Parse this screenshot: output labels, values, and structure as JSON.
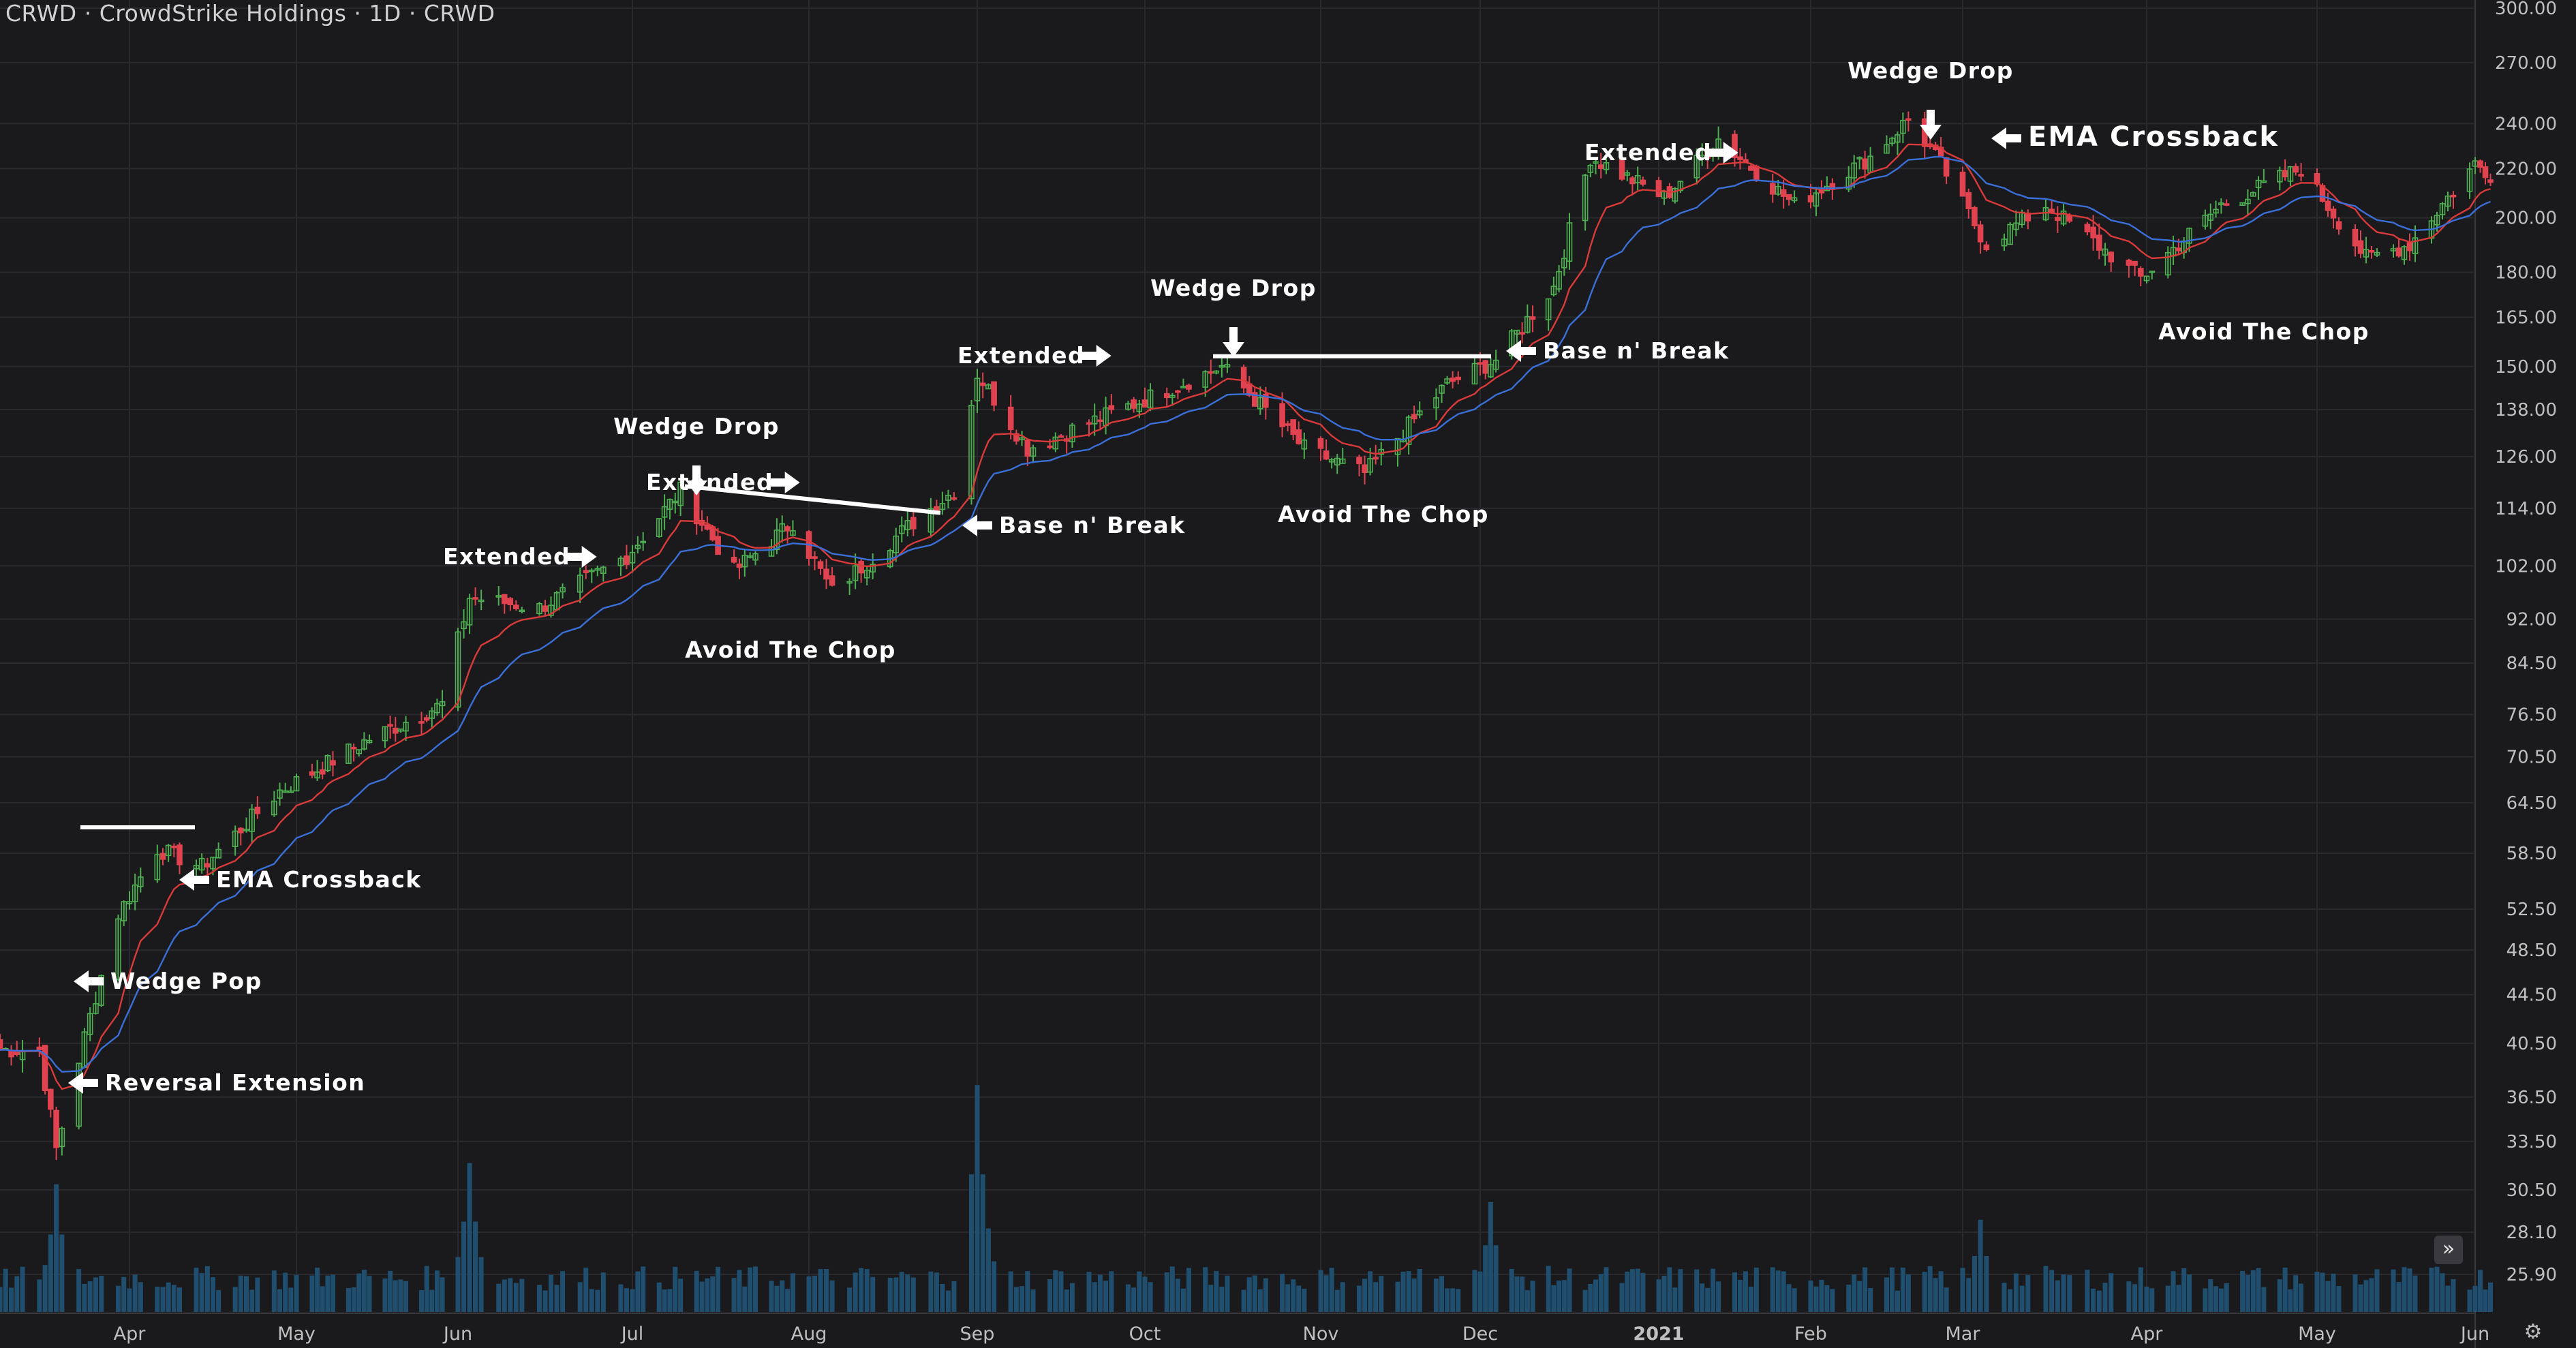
{
  "header": {
    "symbol": "CRWD",
    "company": "CrowdStrike Holdings",
    "interval": "1D",
    "exchange_symbol": "CRWD",
    "sep": "·"
  },
  "controls": {
    "collapse_icon": "double-chevron-right-icon",
    "settings_icon": "gear-icon"
  },
  "colors": {
    "background": "#1a1a1c",
    "grid": "#2a2a2e",
    "up": "#4caf50",
    "down": "#e0424f",
    "ema_fast": "#d93a3a",
    "ema_slow": "#3b6fd8",
    "volume": "#1f4e6e",
    "text": "#bfbfbf"
  },
  "chart_data": {
    "type": "candlestick",
    "scale": "log",
    "grid": true,
    "y_ticks": [
      "300.00",
      "270.00",
      "240.00",
      "220.00",
      "200.00",
      "180.00",
      "165.00",
      "150.00",
      "138.00",
      "126.00",
      "114.00",
      "102.00",
      "92.00",
      "84.50",
      "76.50",
      "70.50",
      "64.50",
      "58.50",
      "52.50",
      "48.50",
      "44.50",
      "40.50",
      "36.50",
      "33.50",
      "30.50",
      "28.10",
      "25.90"
    ],
    "x_ticks": [
      "Apr",
      "May",
      "Jun",
      "Jul",
      "Aug",
      "Sep",
      "Oct",
      "Nov",
      "Dec",
      "2021",
      "Feb",
      "Mar",
      "Apr",
      "May",
      "Jun"
    ],
    "price_anchors": [
      {
        "date": "2020-03-16",
        "close": 40
      },
      {
        "date": "2020-03-19",
        "close": 33
      },
      {
        "date": "2020-03-24",
        "close": 41
      },
      {
        "date": "2020-03-30",
        "close": 52
      },
      {
        "date": "2020-04-06",
        "close": 59
      },
      {
        "date": "2020-04-14",
        "close": 57
      },
      {
        "date": "2020-04-28",
        "close": 66
      },
      {
        "date": "2020-05-15",
        "close": 73
      },
      {
        "date": "2020-05-29",
        "close": 78
      },
      {
        "date": "2020-06-03",
        "close": 96
      },
      {
        "date": "2020-06-15",
        "close": 94
      },
      {
        "date": "2020-06-30",
        "close": 104
      },
      {
        "date": "2020-07-10",
        "close": 118
      },
      {
        "date": "2020-07-20",
        "close": 101
      },
      {
        "date": "2020-07-31",
        "close": 111
      },
      {
        "date": "2020-08-07",
        "close": 97
      },
      {
        "date": "2020-08-20",
        "close": 110
      },
      {
        "date": "2020-08-28",
        "close": 118
      },
      {
        "date": "2020-09-01",
        "close": 148
      },
      {
        "date": "2020-09-10",
        "close": 128
      },
      {
        "date": "2020-09-25",
        "close": 137
      },
      {
        "date": "2020-10-15",
        "close": 150
      },
      {
        "date": "2020-10-30",
        "close": 128
      },
      {
        "date": "2020-11-10",
        "close": 122
      },
      {
        "date": "2020-11-25",
        "close": 145
      },
      {
        "date": "2020-12-04",
        "close": 152
      },
      {
        "date": "2020-12-15",
        "close": 175
      },
      {
        "date": "2020-12-22",
        "close": 225
      },
      {
        "date": "2021-01-05",
        "close": 208
      },
      {
        "date": "2021-01-15",
        "close": 233
      },
      {
        "date": "2021-01-29",
        "close": 205
      },
      {
        "date": "2021-02-12",
        "close": 225
      },
      {
        "date": "2021-02-19",
        "close": 242
      },
      {
        "date": "2021-02-25",
        "close": 222
      },
      {
        "date": "2021-03-05",
        "close": 190
      },
      {
        "date": "2021-03-15",
        "close": 205
      },
      {
        "date": "2021-03-31",
        "close": 178
      },
      {
        "date": "2021-04-15",
        "close": 205
      },
      {
        "date": "2021-04-30",
        "close": 220
      },
      {
        "date": "2021-05-12",
        "close": 185
      },
      {
        "date": "2021-05-20",
        "close": 190
      },
      {
        "date": "2021-06-01",
        "close": 222
      },
      {
        "date": "2021-06-04",
        "close": 218
      }
    ],
    "volume_peaks": [
      {
        "date": "2020-03-19",
        "height": 0.36
      },
      {
        "date": "2020-06-03",
        "height": 0.42
      },
      {
        "date": "2020-09-01",
        "height": 0.64
      },
      {
        "date": "2020-12-03",
        "height": 0.31
      },
      {
        "date": "2021-03-04",
        "height": 0.26
      }
    ]
  },
  "annotations": [
    {
      "id": "reversal-extension",
      "text": "Reversal Extension",
      "arrow": "left"
    },
    {
      "id": "wedge-pop",
      "text": "Wedge Pop",
      "arrow": "left"
    },
    {
      "id": "ema-crossback-1",
      "text": "EMA Crossback",
      "arrow": "left"
    },
    {
      "id": "extended-1",
      "text": "Extended",
      "arrow": "right"
    },
    {
      "id": "extended-2",
      "text": "Extended",
      "arrow": "right"
    },
    {
      "id": "wedge-drop-1",
      "text": "Wedge Drop",
      "arrow": "down"
    },
    {
      "id": "avoid-chop-1",
      "text": "Avoid The Chop",
      "arrow": "none"
    },
    {
      "id": "base-break-1",
      "text": "Base n' Break",
      "arrow": "left"
    },
    {
      "id": "extended-3",
      "text": "Extended",
      "arrow": "right"
    },
    {
      "id": "wedge-drop-2",
      "text": "Wedge Drop",
      "arrow": "down"
    },
    {
      "id": "avoid-chop-2",
      "text": "Avoid The Chop",
      "arrow": "none"
    },
    {
      "id": "base-break-2",
      "text": "Base n' Break",
      "arrow": "left"
    },
    {
      "id": "extended-4",
      "text": "Extended",
      "arrow": "right"
    },
    {
      "id": "wedge-drop-3",
      "text": "Wedge Drop",
      "arrow": "down"
    },
    {
      "id": "ema-crossback-2",
      "text": "EMA Crossback",
      "arrow": "left"
    },
    {
      "id": "avoid-chop-3",
      "text": "Avoid The Chop",
      "arrow": "none"
    }
  ]
}
